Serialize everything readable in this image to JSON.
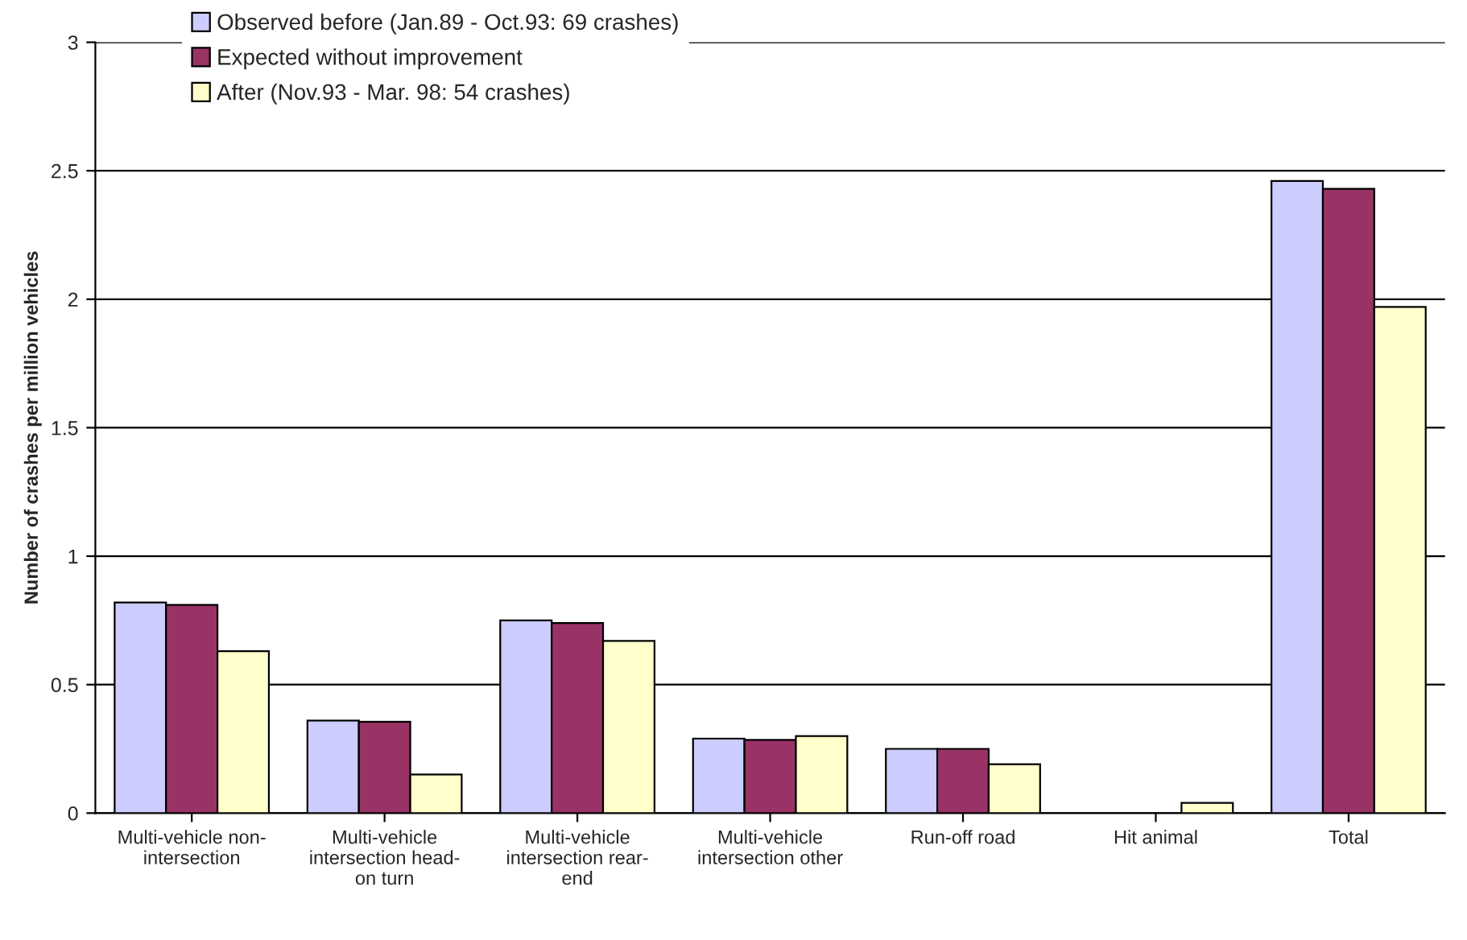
{
  "chart_data": {
    "type": "bar",
    "ylabel": "Number of crashes per million vehicles",
    "categories": [
      "Multi-vehicle non-\nintersection",
      "Multi-vehicle\nintersection head-\non turn",
      "Multi-vehicle\nintersection rear-\nend",
      "Multi-vehicle\nintersection other",
      "Run-off road",
      "Hit animal",
      "Total"
    ],
    "series": [
      {
        "name": "Observed before (Jan.89 - Oct.93: 69 crashes)",
        "color": "#ccccff",
        "values": [
          0.82,
          0.36,
          0.75,
          0.29,
          0.25,
          0,
          2.46
        ]
      },
      {
        "name": "Expected without improvement",
        "color": "#993366",
        "values": [
          0.81,
          0.355,
          0.74,
          0.285,
          0.25,
          0,
          2.43
        ]
      },
      {
        "name": "After (Nov.93 - Mar. 98: 54 crashes)",
        "color": "#ffffcc",
        "values": [
          0.63,
          0.15,
          0.67,
          0.3,
          0.19,
          0.04,
          1.97
        ]
      }
    ],
    "ylim": [
      0,
      3
    ],
    "yticks": [
      0,
      0.5,
      1,
      1.5,
      2,
      2.5,
      3
    ],
    "grid": "y",
    "legend": "top left"
  }
}
